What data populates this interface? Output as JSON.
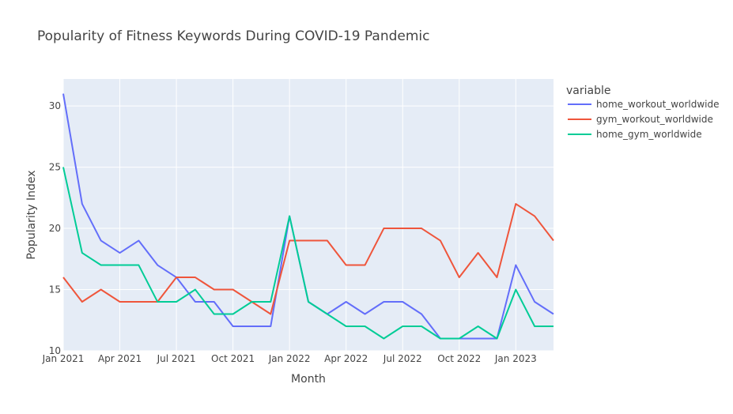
{
  "chart_data": {
    "type": "line",
    "title": "Popularity of Fitness Keywords During COVID-19 Pandemic",
    "xlabel": "Month",
    "ylabel": "Popularity Index",
    "x": [
      "2021-01",
      "2021-02",
      "2021-03",
      "2021-04",
      "2021-05",
      "2021-06",
      "2021-07",
      "2021-08",
      "2021-09",
      "2021-10",
      "2021-11",
      "2021-12",
      "2022-01",
      "2022-02",
      "2022-03",
      "2022-04",
      "2022-05",
      "2022-06",
      "2022-07",
      "2022-08",
      "2022-09",
      "2022-10",
      "2022-11",
      "2022-12",
      "2023-01",
      "2023-02",
      "2023-03"
    ],
    "xlim": [
      "2021-01",
      "2023-03"
    ],
    "ylim": [
      10,
      32.2
    ],
    "x_ticks": [
      {
        "label": "Jan 2021",
        "month": "2021-01"
      },
      {
        "label": "Apr 2021",
        "month": "2021-04"
      },
      {
        "label": "Jul 2021",
        "month": "2021-07"
      },
      {
        "label": "Oct 2021",
        "month": "2021-10"
      },
      {
        "label": "Jan 2022",
        "month": "2022-01"
      },
      {
        "label": "Apr 2022",
        "month": "2022-04"
      },
      {
        "label": "Jul 2022",
        "month": "2022-07"
      },
      {
        "label": "Oct 2022",
        "month": "2022-10"
      },
      {
        "label": "Jan 2023",
        "month": "2023-01"
      }
    ],
    "y_ticks": [
      10,
      15,
      20,
      25,
      30
    ],
    "grid": true,
    "legend_title": "variable",
    "legend_position": "right",
    "series": [
      {
        "name": "home_workout_worldwide",
        "color": "#636efa",
        "values": [
          31,
          22,
          19,
          18,
          19,
          17,
          16,
          14,
          14,
          12,
          12,
          12,
          21,
          14,
          13,
          14,
          13,
          14,
          14,
          13,
          11,
          11,
          11,
          11,
          17,
          14,
          13
        ]
      },
      {
        "name": "gym_workout_worldwide",
        "color": "#ef553b",
        "values": [
          16,
          14,
          15,
          14,
          14,
          14,
          16,
          16,
          15,
          15,
          14,
          13,
          19,
          19,
          19,
          17,
          17,
          20,
          20,
          20,
          19,
          16,
          18,
          16,
          22,
          21,
          19
        ]
      },
      {
        "name": "home_gym_worldwide",
        "color": "#00cc96",
        "values": [
          25,
          18,
          17,
          17,
          17,
          14,
          14,
          15,
          13,
          13,
          14,
          14,
          21,
          14,
          13,
          12,
          12,
          11,
          12,
          12,
          11,
          11,
          12,
          11,
          15,
          12,
          12
        ]
      }
    ]
  }
}
